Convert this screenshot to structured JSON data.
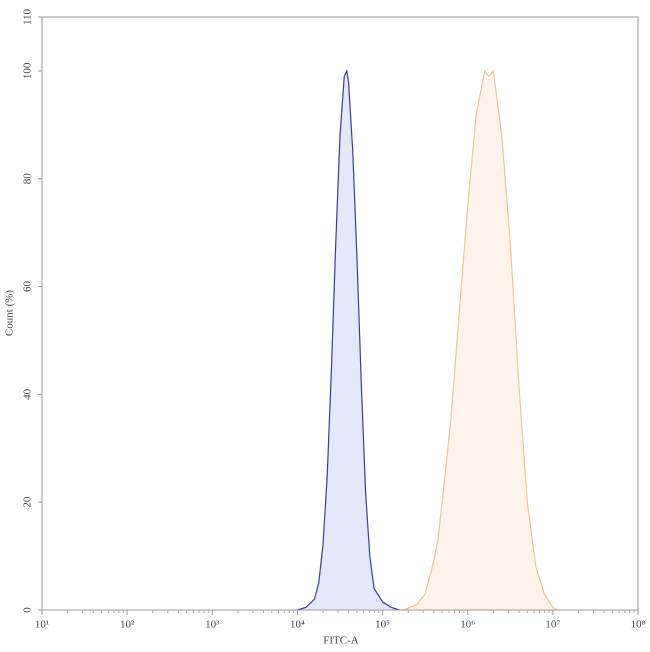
{
  "chart_data": {
    "type": "area",
    "x_label": "FITC-A",
    "y_label": "Count (%)",
    "xscale": "log",
    "xlim": [
      10,
      100000000
    ],
    "xticks": [
      {
        "value": 10,
        "label": "10¹"
      },
      {
        "value": 100,
        "label": "10²"
      },
      {
        "value": 1000,
        "label": "10³"
      },
      {
        "value": 10000,
        "label": "10⁴"
      },
      {
        "value": 100000,
        "label": "10⁵"
      },
      {
        "value": 1000000,
        "label": "10⁶"
      },
      {
        "value": 10000000,
        "label": "10⁷"
      },
      {
        "value": 100000000,
        "label": "10⁸"
      }
    ],
    "ylim": [
      0,
      110
    ],
    "yticks": [
      0,
      20,
      40,
      60,
      80,
      100,
      110
    ],
    "series": [
      {
        "color": "#3b3b9c",
        "fill": "#e5e7fb",
        "x": [
          10000,
          12589,
          15849,
          17783,
          19953,
          22387,
          25119,
          28184,
          31623,
          35481,
          38019,
          39811,
          44668,
          50119,
          56234,
          63096,
          70795,
          79433,
          100000,
          125893,
          158489
        ],
        "values": [
          0,
          0.5,
          2,
          5,
          12,
          25,
          45,
          68,
          88,
          99,
          100,
          98,
          85,
          65,
          42,
          22,
          10,
          4,
          1.5,
          0.5,
          0
        ]
      },
      {
        "color": "#e8c79c",
        "fill": "#fdf3ea",
        "x": [
          177828,
          251189,
          316228,
          354813,
          398107,
          446684,
          501187,
          630957,
          794328,
          1000000,
          1258925,
          1584893,
          1778279,
          1995262,
          2511886,
          3162278,
          3981072,
          5011872,
          6309573,
          7943282,
          10000000,
          11220185
        ],
        "values": [
          0,
          1,
          3,
          6,
          9,
          13,
          20,
          35,
          55,
          75,
          92,
          100,
          99,
          100,
          88,
          68,
          42,
          20,
          8,
          3,
          0.5,
          0
        ]
      }
    ]
  }
}
